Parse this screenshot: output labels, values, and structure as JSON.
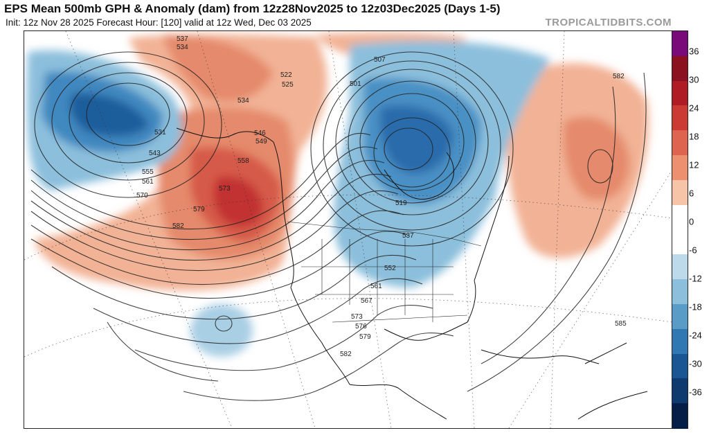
{
  "header": {
    "title": "EPS Mean 500mb GPH & Anomaly (dam) from 12z28Nov2025 to 12z03Dec2025 (Days 1-5)",
    "subtitle": "Init: 12z Nov 28 2025   Forecast Hour: [120]   valid at 12z Wed, Dec 03 2025",
    "brand": "TROPICALTIDBITS.COM"
  },
  "colorbar": {
    "ticks": [
      "36",
      "30",
      "24",
      "18",
      "12",
      "6",
      "0",
      "-6",
      "-12",
      "-18",
      "-24",
      "-30",
      "-36"
    ],
    "colors": [
      "#7a0a7a",
      "#8b1020",
      "#b01c24",
      "#cc3a34",
      "#de6450",
      "#ec9070",
      "#f7c4a8",
      "#ffffff",
      "#ffffff",
      "#bcdaea",
      "#8cbfdc",
      "#5a9cc8",
      "#2f78b4",
      "#1a5594",
      "#0e3a70",
      "#051e48"
    ]
  },
  "map": {
    "contour_labels": [
      {
        "text": "537"
      },
      {
        "text": "534"
      },
      {
        "text": "522"
      },
      {
        "text": "525"
      },
      {
        "text": "534"
      },
      {
        "text": "546"
      },
      {
        "text": "549"
      },
      {
        "text": "558"
      },
      {
        "text": "531"
      },
      {
        "text": "543"
      },
      {
        "text": "555"
      },
      {
        "text": "561"
      },
      {
        "text": "570"
      },
      {
        "text": "573"
      },
      {
        "text": "579"
      },
      {
        "text": "582"
      },
      {
        "text": "507"
      },
      {
        "text": "501"
      },
      {
        "text": "519"
      },
      {
        "text": "537"
      },
      {
        "text": "552"
      },
      {
        "text": "561"
      },
      {
        "text": "567"
      },
      {
        "text": "573"
      },
      {
        "text": "576"
      },
      {
        "text": "579"
      },
      {
        "text": "582"
      },
      {
        "text": "582"
      },
      {
        "text": "585"
      }
    ]
  }
}
